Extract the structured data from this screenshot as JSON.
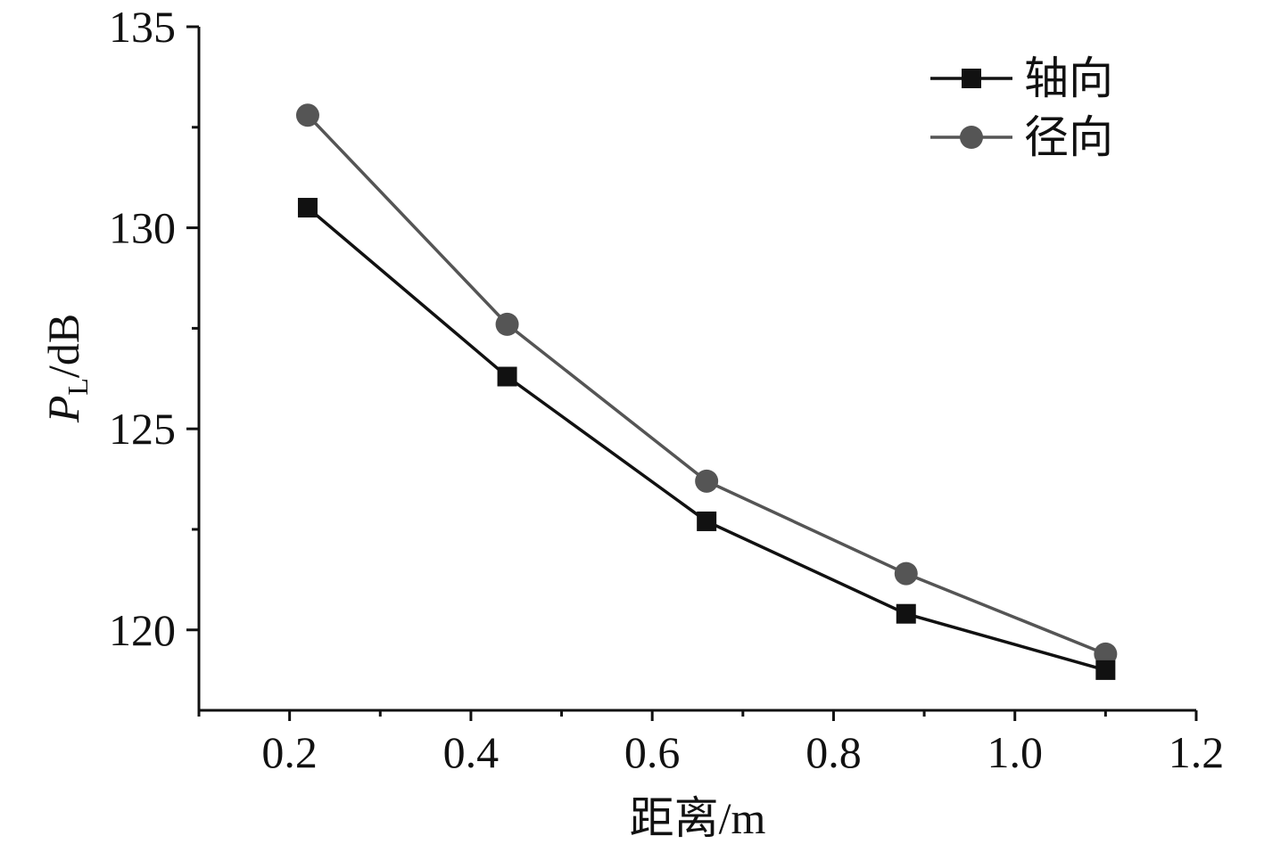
{
  "chart_data": {
    "type": "line",
    "x": [
      0.22,
      0.44,
      0.66,
      0.88,
      1.1
    ],
    "series": [
      {
        "name": "轴向",
        "values": [
          130.5,
          126.3,
          122.7,
          120.4,
          119.0
        ],
        "color": "#111111",
        "marker": "square"
      },
      {
        "name": "径向",
        "values": [
          132.8,
          127.6,
          123.7,
          121.4,
          119.4
        ],
        "color": "#555555",
        "marker": "circle"
      }
    ],
    "xlabel": "距离/m",
    "ylabel": {
      "main": "P",
      "sub": "L",
      "unit": "/dB"
    },
    "xlim": [
      0.1,
      1.2
    ],
    "ylim": [
      118,
      135
    ],
    "xticks": [
      "0.2",
      "0.4",
      "0.6",
      "0.8",
      "1.0",
      "1.2"
    ],
    "yticks": [
      "120",
      "125",
      "130",
      "135"
    ],
    "legend_position": "top-right",
    "grid": false
  }
}
